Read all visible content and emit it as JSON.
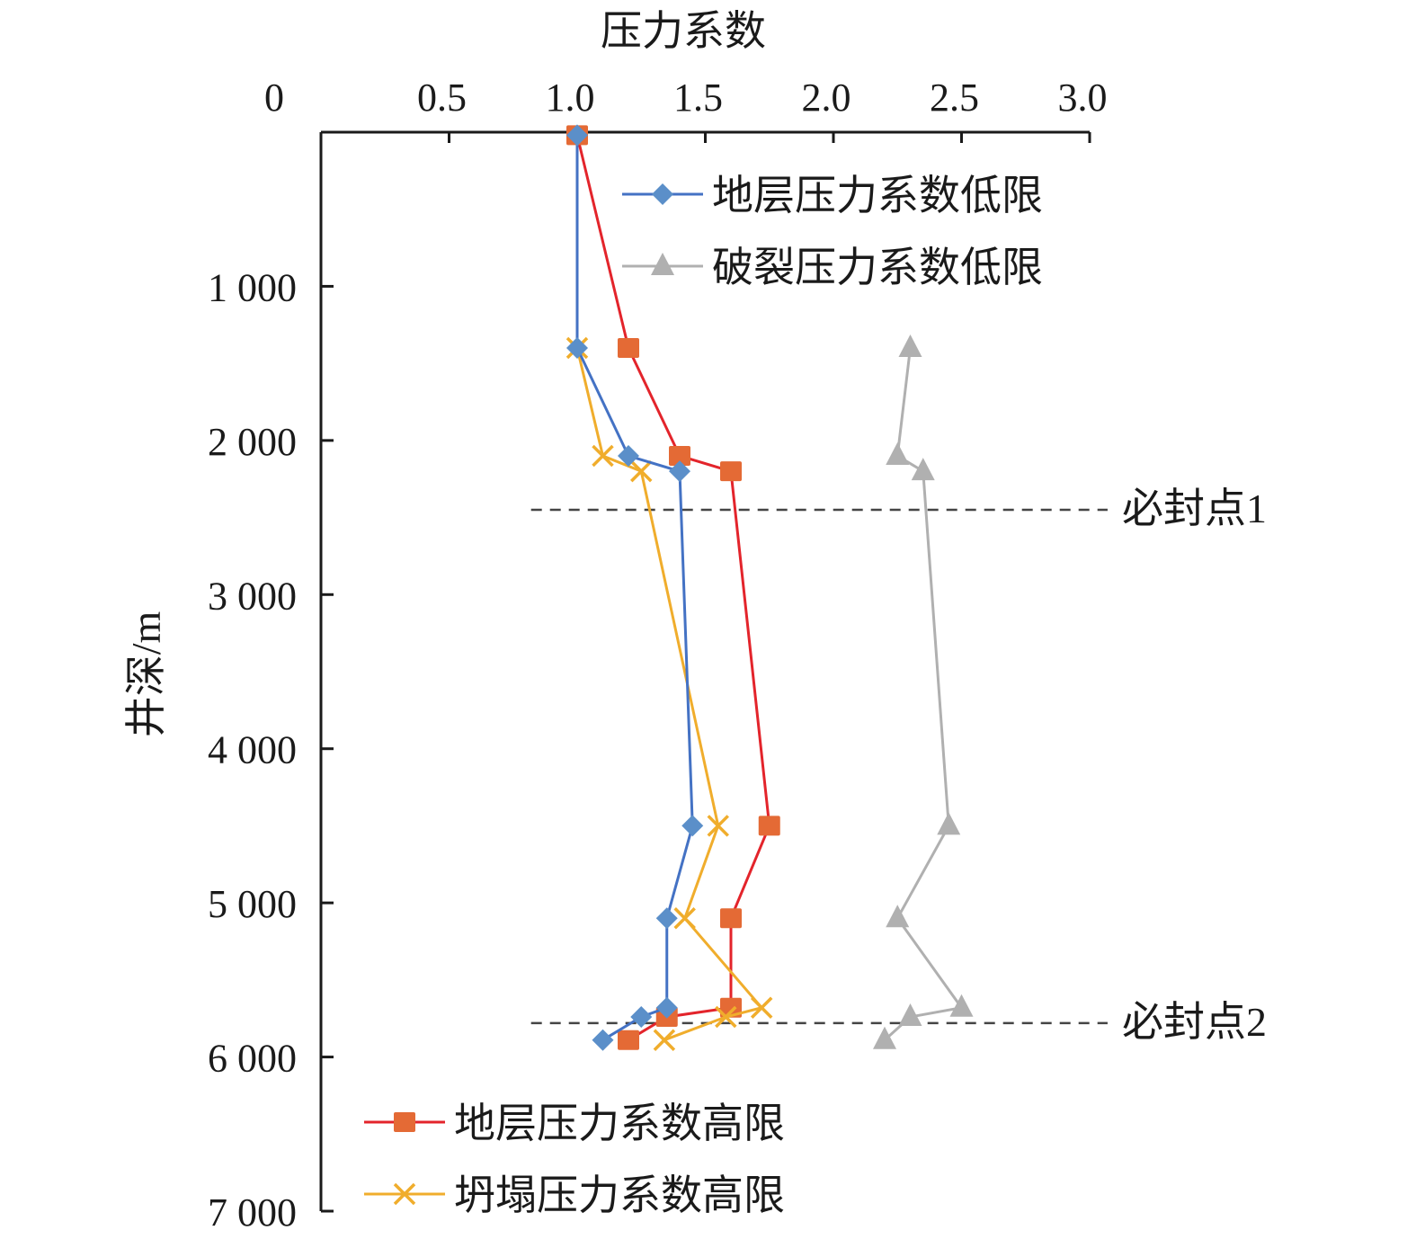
{
  "chart_data": {
    "type": "line",
    "title": "压力系数",
    "xlabel": "压力系数",
    "ylabel": "井深/m",
    "xlim": [
      0,
      3.0
    ],
    "ylim": [
      0,
      7000
    ],
    "y_inverted": true,
    "x_axis_position": "top",
    "grid": false,
    "x_ticks": [
      0,
      0.5,
      1.0,
      1.5,
      2.0,
      2.5,
      3.0
    ],
    "x_tick_labels": [
      "0",
      "0.5",
      "1.0",
      "1.5",
      "2.0",
      "2.5",
      "3.0"
    ],
    "y_ticks": [
      1000,
      2000,
      3000,
      4000,
      5000,
      6000,
      7000
    ],
    "y_tick_labels": [
      "1 000",
      "2 000",
      "3 000",
      "4 000",
      "5 000",
      "6 000",
      "7 000"
    ],
    "series": [
      {
        "name": "地层压力系数高限",
        "color": "#e3242b",
        "marker_color": "#e46a35",
        "marker": "square",
        "x": [
          1.0,
          1.2,
          1.4,
          1.6,
          1.75,
          1.6,
          1.6,
          1.35,
          1.2
        ],
        "y": [
          20,
          1400,
          2100,
          2200,
          4500,
          5100,
          5680,
          5740,
          5890
        ]
      },
      {
        "name": "坍塌压力系数高限",
        "color": "#f0ad2c",
        "marker_color": "#f0ad2c",
        "marker": "x",
        "x": [
          1.0,
          1.1,
          1.25,
          1.55,
          1.42,
          1.72,
          1.58,
          1.34
        ],
        "y": [
          1400,
          2100,
          2200,
          4500,
          5100,
          5680,
          5740,
          5890
        ]
      },
      {
        "name": "地层压力系数低限",
        "color": "#4472c4",
        "marker_color": "#5b8fc9",
        "marker": "diamond",
        "x": [
          1.0,
          1.0,
          1.2,
          1.4,
          1.45,
          1.35,
          1.35,
          1.25,
          1.1
        ],
        "y": [
          20,
          1400,
          2100,
          2200,
          4500,
          5100,
          5680,
          5740,
          5890
        ]
      },
      {
        "name": "破裂压力系数低限",
        "color": "#b0b0b0",
        "marker_color": "#b0b0b0",
        "marker": "triangle",
        "x": [
          2.3,
          2.25,
          2.35,
          2.45,
          2.25,
          2.5,
          2.3,
          2.2
        ],
        "y": [
          1400,
          2100,
          2200,
          4500,
          5100,
          5680,
          5740,
          5890
        ]
      }
    ],
    "legend_top_right": [
      "地层压力系数低限",
      "破裂压力系数低限"
    ],
    "legend_bottom_left": [
      "地层压力系数高限",
      "坍塌压力系数高限"
    ],
    "annotations": [
      {
        "text": "必封点1",
        "depth": 2450,
        "x_from": 0.82,
        "x_to": 3.07
      },
      {
        "text": "必封点2",
        "depth": 5780,
        "x_from": 0.82,
        "x_to": 3.07
      }
    ]
  }
}
